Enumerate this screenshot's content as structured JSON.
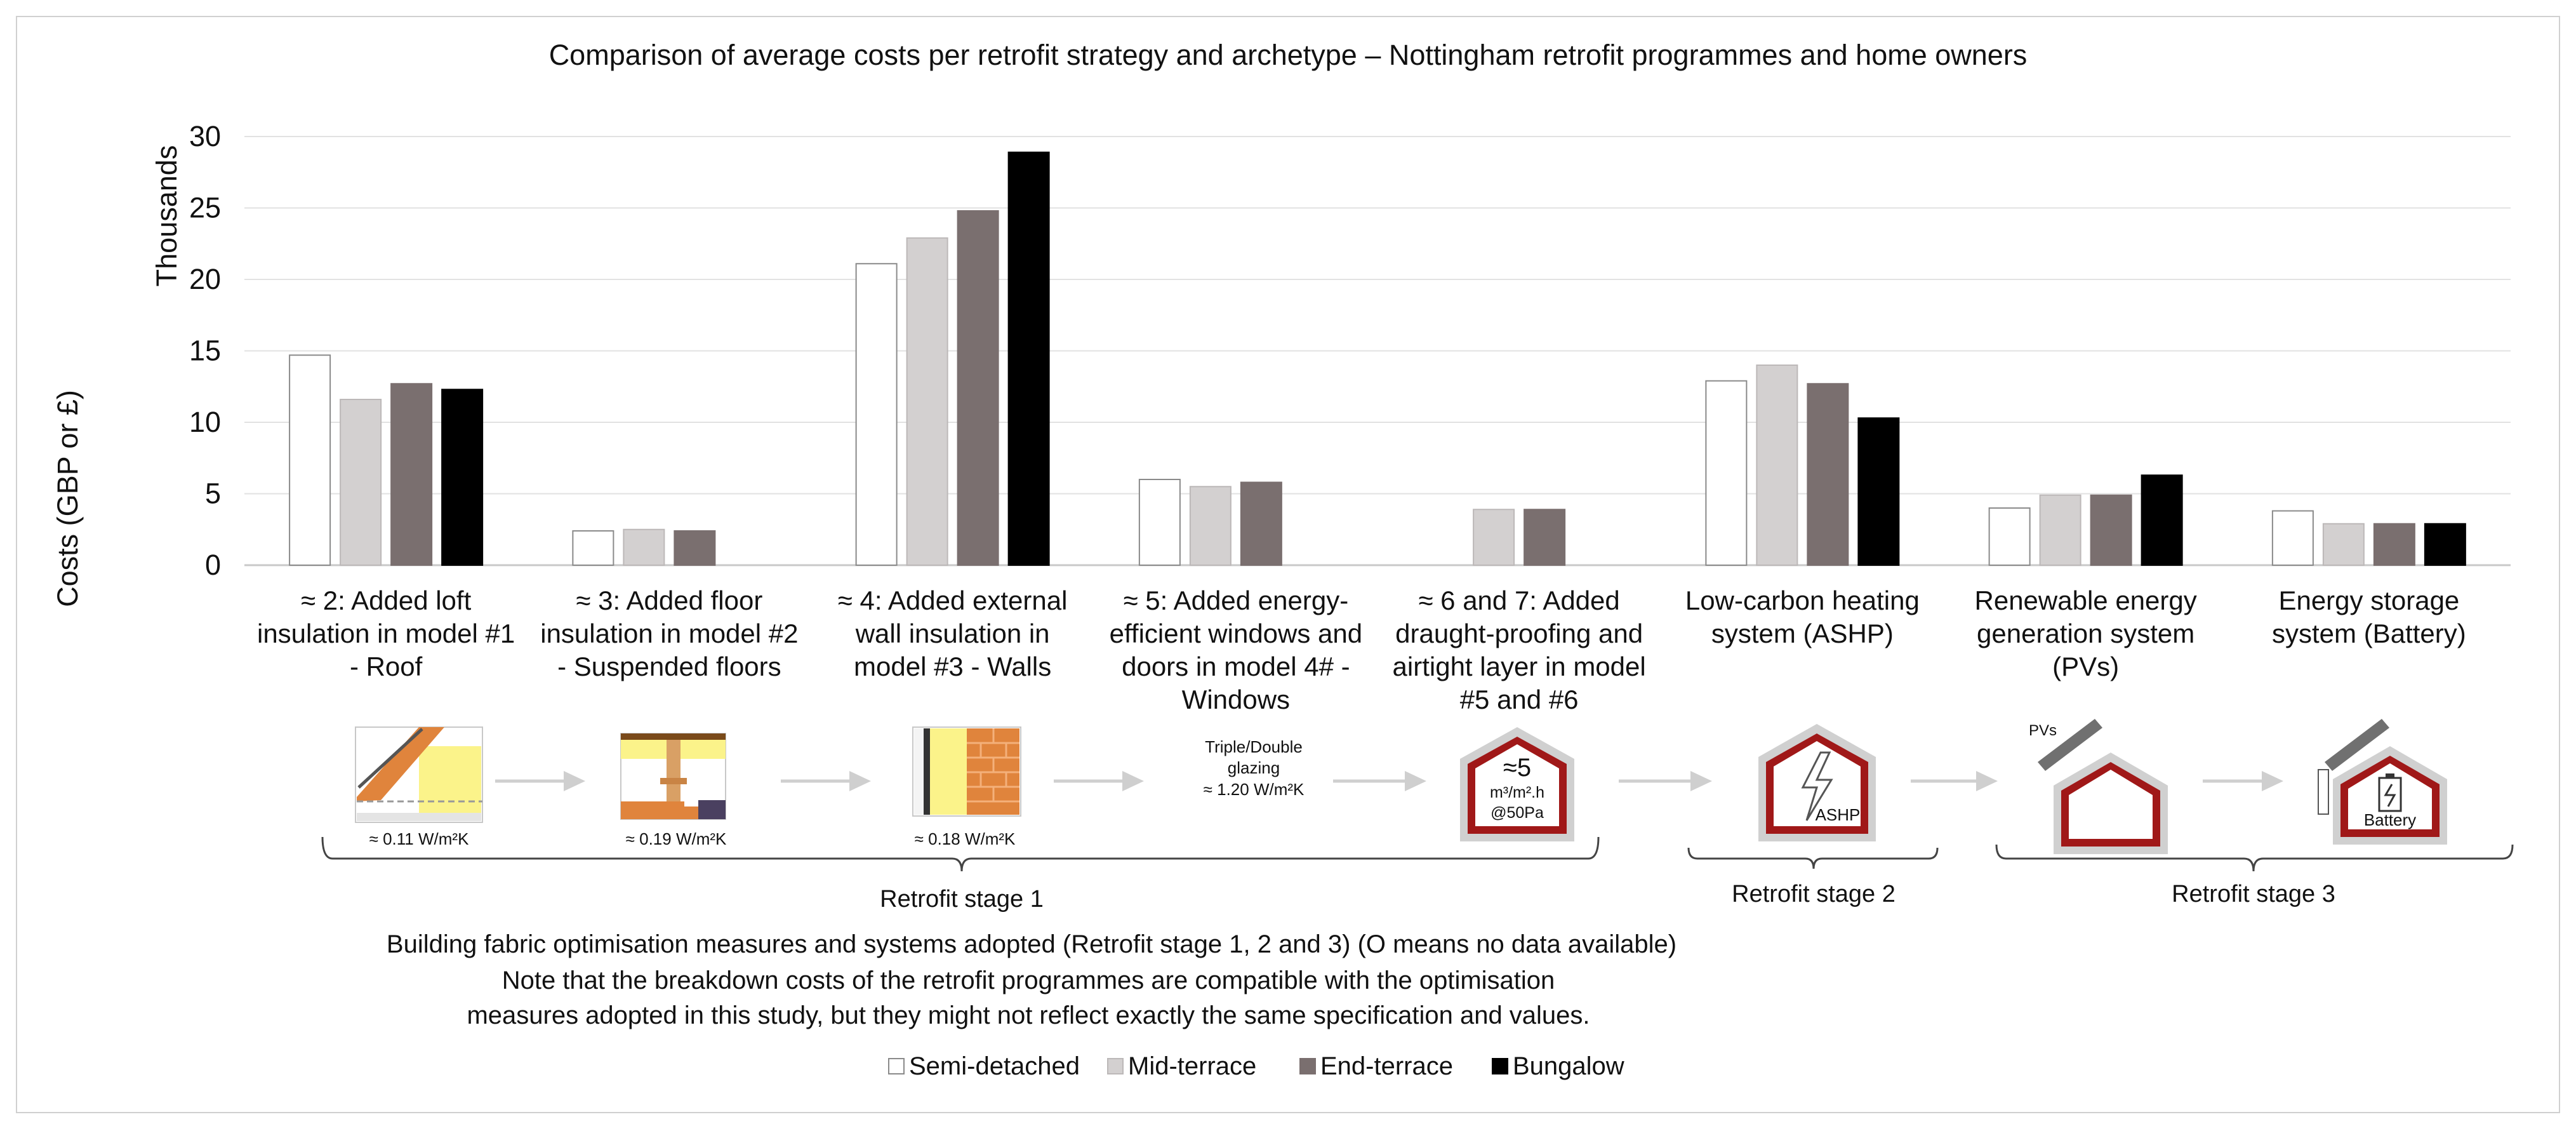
{
  "chart_data": {
    "type": "bar",
    "title": "Comparison of average costs per retrofit strategy and archetype – Nottingham retrofit programmes and home owners",
    "ylabel": "Costs (GBP or £)",
    "yunit": "Thousands",
    "ylim": [
      0,
      30
    ],
    "yticks": [
      "0",
      "5",
      "10",
      "15",
      "20",
      "25",
      "30"
    ],
    "grid": true,
    "legend_position": "bottom",
    "categories": [
      [
        "≈ 2: Added loft",
        "insulation in model #1",
        "- Roof"
      ],
      [
        "≈ 3: Added floor",
        "insulation in model #2",
        "- Suspended floors"
      ],
      [
        "≈ 4: Added external",
        "wall insulation in",
        "model #3 - Walls"
      ],
      [
        "≈ 5: Added energy-",
        "efficient windows and",
        "doors in model 4# -",
        "Windows"
      ],
      [
        "≈ 6 and 7: Added",
        "draught-proofing and",
        "airtight layer in model",
        "#5 and #6"
      ],
      [
        "Low-carbon heating",
        "system (ASHP)"
      ],
      [
        "Renewable energy",
        "generation system",
        "(PVs)"
      ],
      [
        "Energy storage",
        "system (Battery)"
      ]
    ],
    "series": [
      {
        "name": "Semi-detached",
        "color": "#ffffff",
        "stroke": "#8a8a8a",
        "values": [
          14.7,
          2.4,
          21.1,
          6.0,
          null,
          12.9,
          4.0,
          3.8
        ]
      },
      {
        "name": "Mid-terrace",
        "color": "#d3d0d0",
        "stroke": "#bcb8b8",
        "values": [
          11.6,
          2.5,
          22.9,
          5.5,
          3.9,
          14.0,
          4.9,
          2.9
        ]
      },
      {
        "name": "End-terrace",
        "color": "#7a6f6f",
        "stroke": "#7a6f6f",
        "values": [
          12.7,
          2.4,
          24.8,
          5.8,
          3.9,
          12.7,
          4.9,
          2.9
        ]
      },
      {
        "name": "Bungalow",
        "color": "#000000",
        "stroke": "#000000",
        "values": [
          12.3,
          null,
          28.9,
          null,
          null,
          10.3,
          6.3,
          2.9
        ]
      }
    ]
  },
  "diagram": {
    "u_values": [
      "≈ 0.11 W/m²K",
      "≈ 0.19 W/m²K",
      "≈ 0.18 W/m²K"
    ],
    "glazing_lines": [
      "Triple/Double",
      "glazing",
      "≈ 1.20 W/m²K"
    ],
    "airtight_lines": [
      "≈5",
      "m³/m².h",
      "@50Pa"
    ],
    "ashp_label": "ASHP",
    "pvs_label": "PVs",
    "battery_label": "Battery",
    "stages": [
      "Retrofit stage 1",
      "Retrofit stage 2",
      "Retrofit stage 3"
    ]
  },
  "footer": {
    "caption": "Building fabric optimisation measures and systems adopted (Retrofit stage 1, 2 and 3) (O means no data available)",
    "note_lines": [
      "Note that the breakdown costs of the retrofit programmes are compatible with the optimisation",
      "measures adopted in this study, but they might not reflect exactly the same specification and values."
    ]
  }
}
